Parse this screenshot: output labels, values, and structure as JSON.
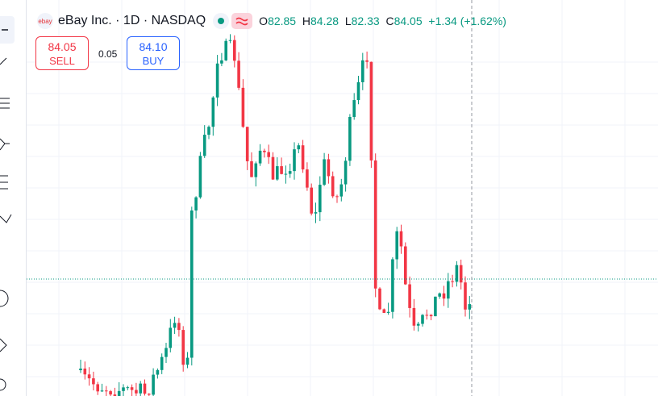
{
  "header": {
    "symbol": "eBay Inc. · 1D · NASDAQ",
    "open_label": "O",
    "open": "82.85",
    "high_label": "H",
    "high": "84.28",
    "low_label": "L",
    "low": "82.33",
    "close_label": "C",
    "close": "84.05",
    "change": "+1.34 (+1.62%)"
  },
  "trade": {
    "sell_price": "84.05",
    "sell_label": "SELL",
    "spread": "0.05",
    "buy_price": "84.10",
    "buy_label": "BUY"
  }
}
